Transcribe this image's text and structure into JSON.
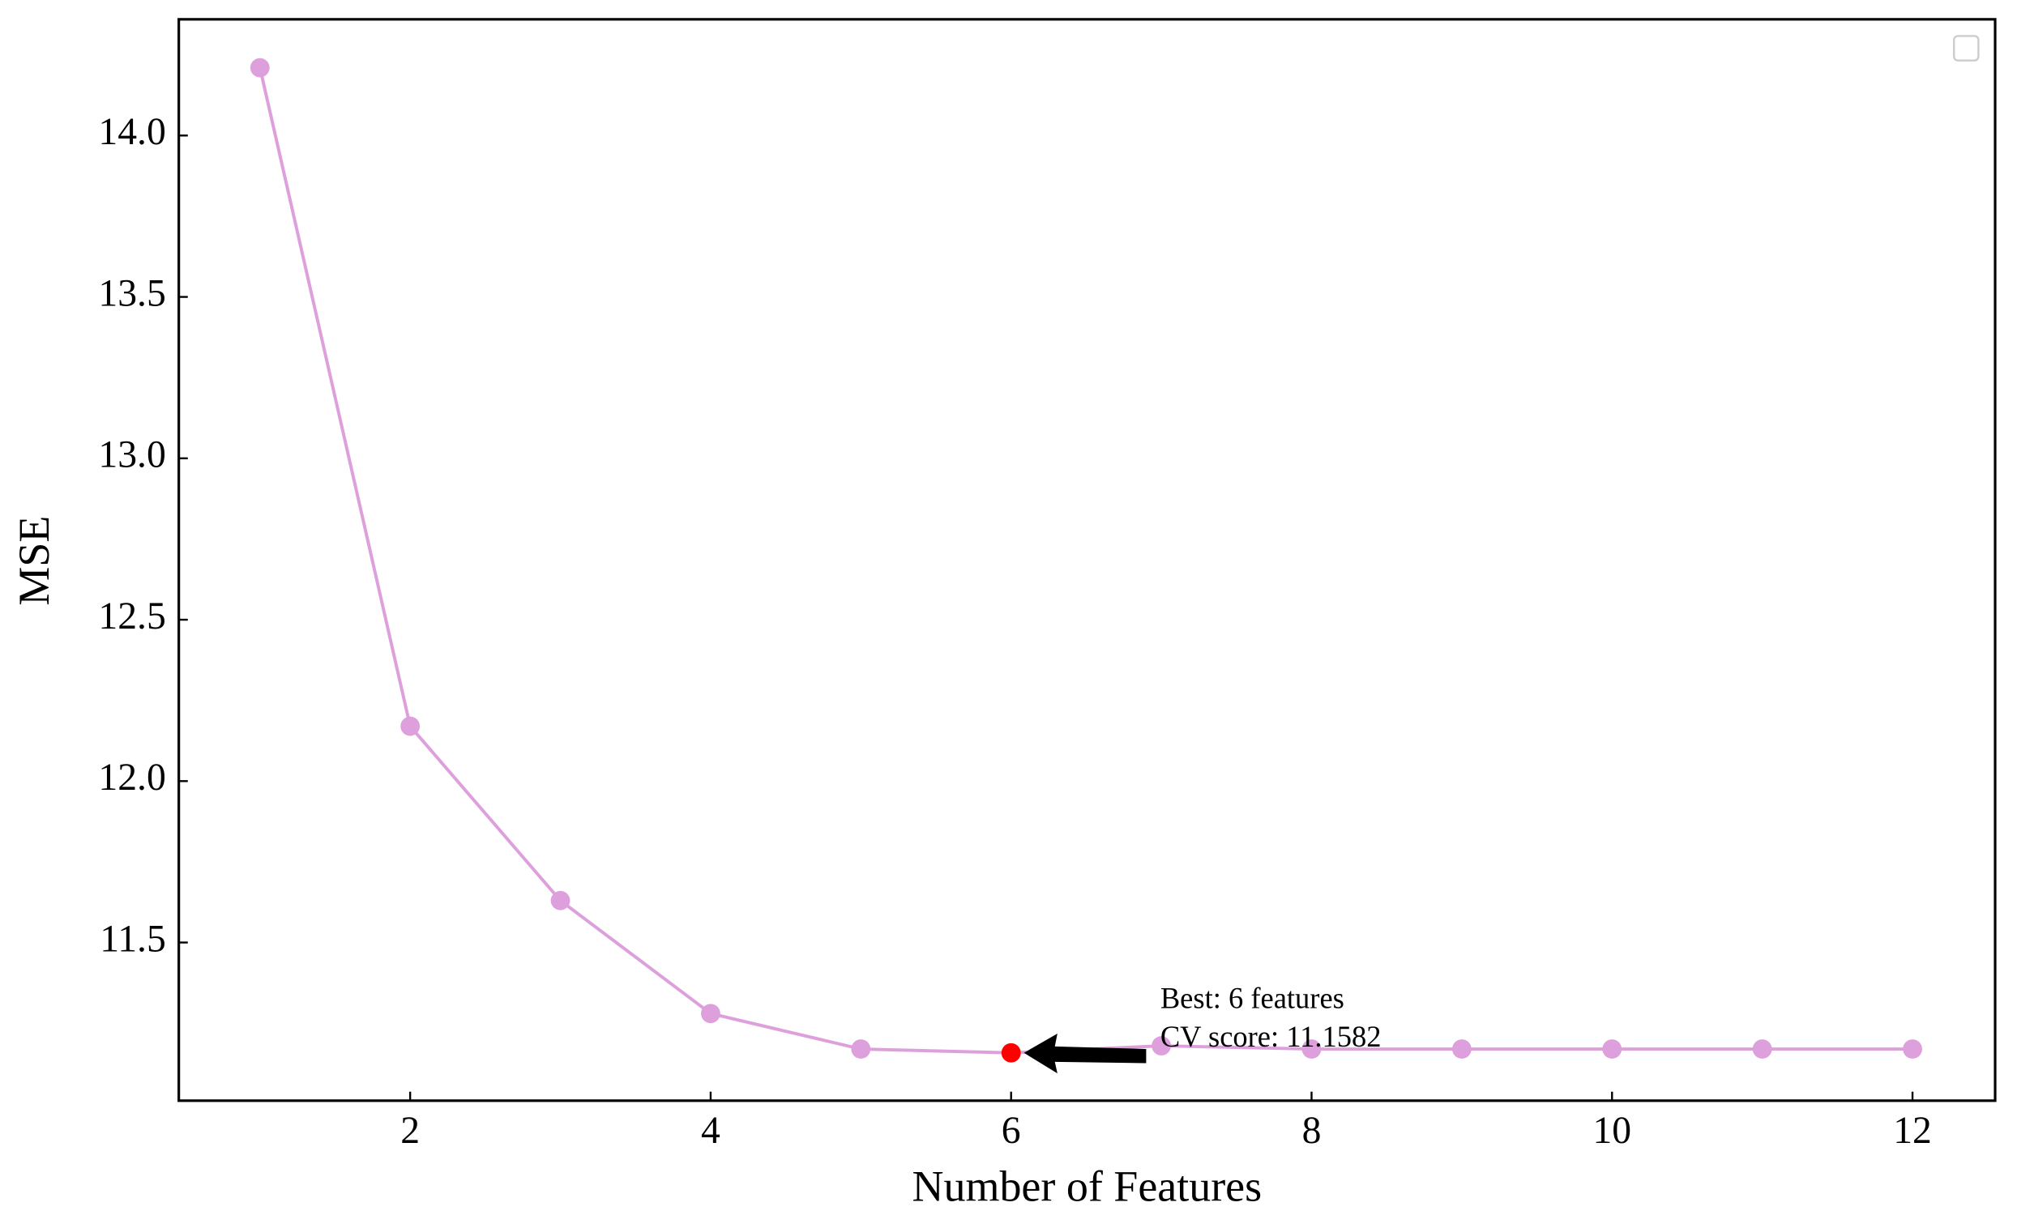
{
  "chart_data": {
    "type": "line",
    "x_label": "Number of Features",
    "y_label": "MSE",
    "x": [
      1,
      2,
      3,
      4,
      5,
      6,
      7,
      8,
      9,
      10,
      11,
      12
    ],
    "series": [
      {
        "color": "#dda0dd",
        "values": [
          14.21,
          12.17,
          11.63,
          11.28,
          11.17,
          11.1582,
          11.18,
          11.17,
          11.17,
          11.17,
          11.17,
          11.17
        ]
      }
    ],
    "xlim": [
      0.46,
      12.55
    ],
    "ylim": [
      11.01,
      14.36
    ],
    "xticks": [
      2,
      4,
      6,
      8,
      10,
      12
    ],
    "yticks": [
      11.5,
      {
        "value": 12,
        "label": "12.0"
      },
      12.5,
      {
        "value": 13,
        "label": "13.0"
      },
      13.5,
      {
        "value": 14,
        "label": "14.0"
      }
    ],
    "annotation": {
      "lines": [
        "Best: 6 features",
        "CV score: 11.1582"
      ],
      "x": 6,
      "y": 11.1582,
      "color": "#ff0000"
    },
    "legend": "upper right"
  }
}
